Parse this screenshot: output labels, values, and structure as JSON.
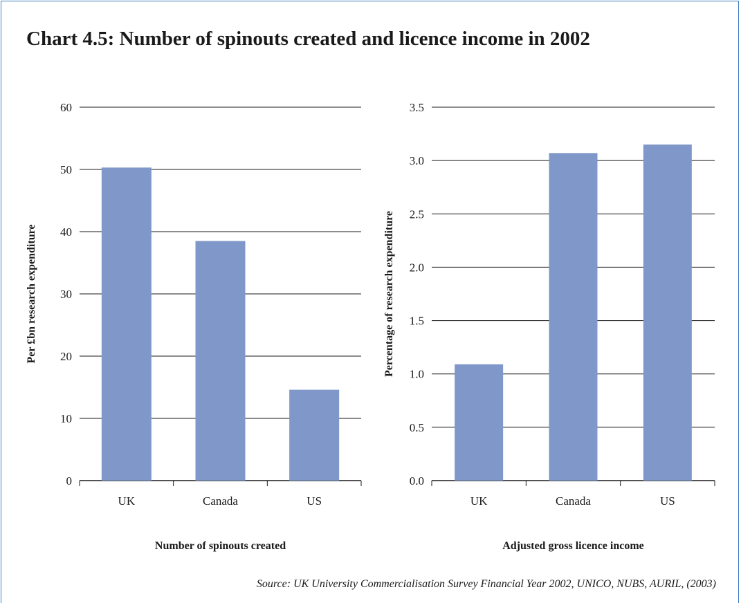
{
  "title": "Chart 4.5: Number of spinouts created and licence income in 2002",
  "source": "Source: UK University Commercialisation Survey Financial Year 2002, UNICO, NUBS, AURIL, (2003)",
  "colors": {
    "bar": "#7f97c9",
    "gridline": "#1a1a1a",
    "frame": "#3b7bbf"
  },
  "chart_data": [
    {
      "type": "bar",
      "categories": [
        "UK",
        "Canada",
        "US"
      ],
      "values": [
        50.3,
        38.5,
        14.6
      ],
      "title": "",
      "xlabel": "Number of spinouts created",
      "ylabel": "Per £bn research expenditure",
      "ylim": [
        0,
        60
      ],
      "yticks": [
        "0",
        "10",
        "20",
        "30",
        "40",
        "50",
        "60"
      ],
      "grid": true,
      "legend": "none"
    },
    {
      "type": "bar",
      "categories": [
        "UK",
        "Canada",
        "US"
      ],
      "values": [
        1.09,
        3.07,
        3.15
      ],
      "title": "",
      "xlabel": "Adjusted gross licence income",
      "ylabel": "Percentage of research expenditure",
      "ylim": [
        0,
        3.5
      ],
      "yticks": [
        "0.0",
        "0.5",
        "1.0",
        "1.5",
        "2.0",
        "2.5",
        "3.0",
        "3.5"
      ],
      "grid": true,
      "legend": "none"
    }
  ]
}
